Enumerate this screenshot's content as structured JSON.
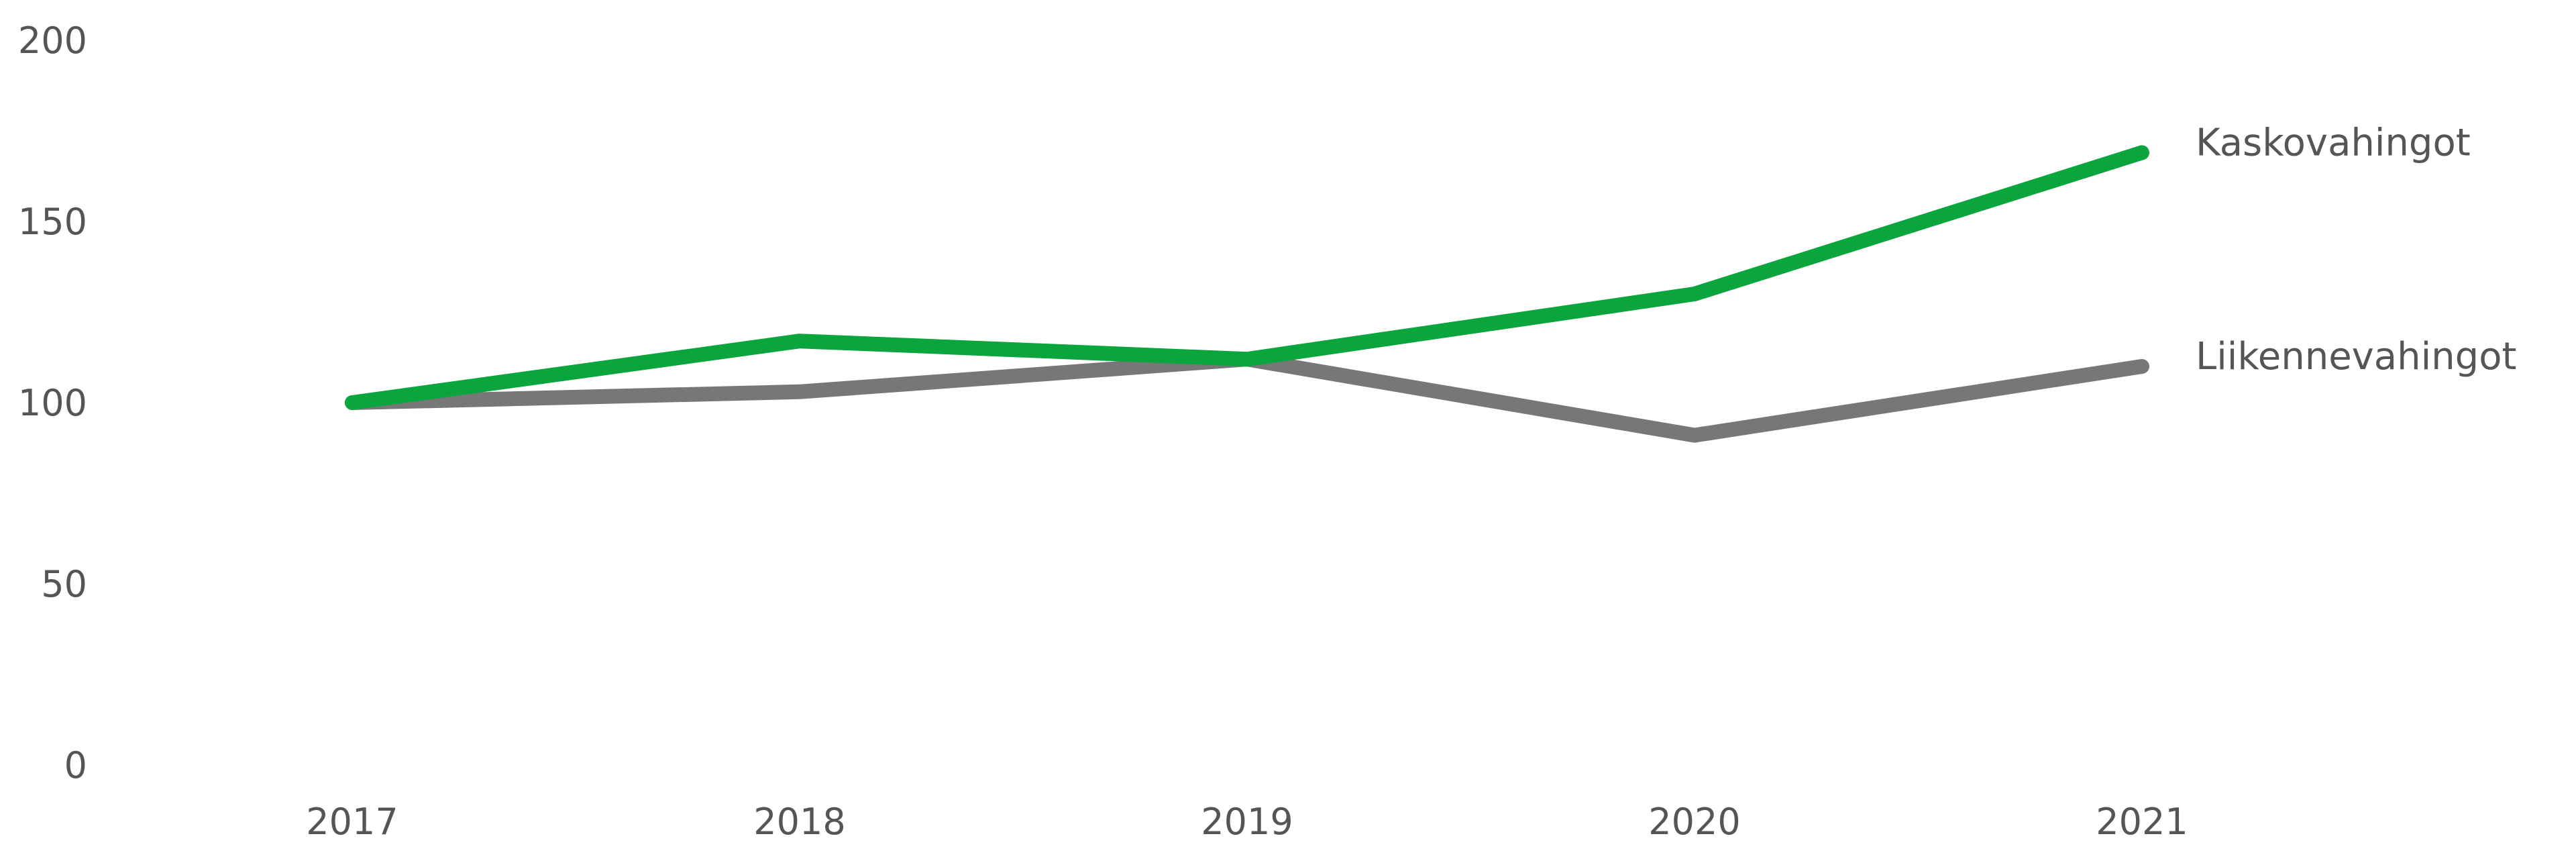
{
  "chart_data": {
    "type": "line",
    "x": [
      "2017",
      "2018",
      "2019",
      "2020",
      "2021"
    ],
    "ylim": [
      0,
      200
    ],
    "y_ticks": [
      "0",
      "50",
      "100",
      "150",
      "200"
    ],
    "grid": false,
    "legend": "inline-end-labels",
    "series": [
      {
        "name": "Kaskovahingot",
        "color": "#0aa53c",
        "values": [
          100,
          117,
          112,
          130,
          169
        ]
      },
      {
        "name": "Liikennevahingot",
        "color": "#777777",
        "values": [
          100,
          103,
          112,
          91,
          110
        ]
      }
    ]
  }
}
